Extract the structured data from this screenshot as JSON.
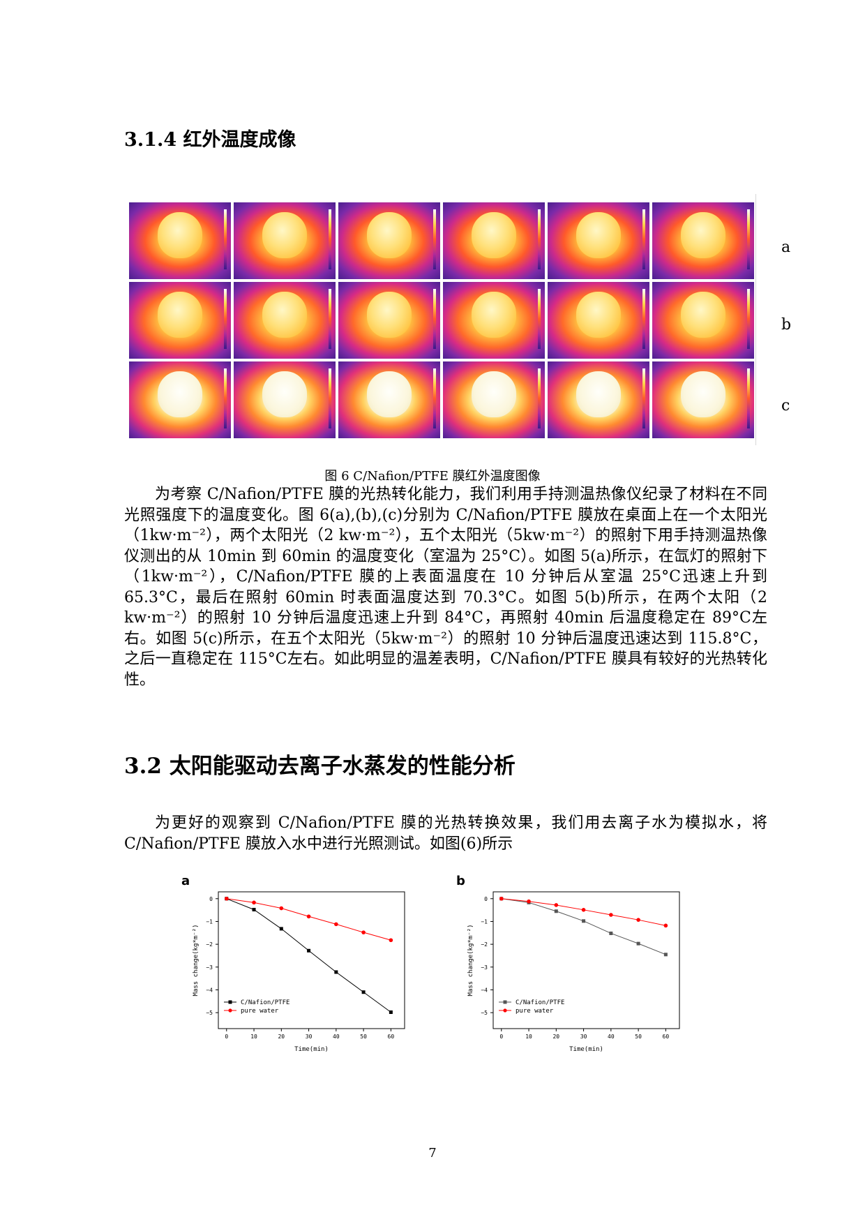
{
  "section_314": {
    "heading": "3.1.4 红外温度成像"
  },
  "figure6": {
    "row_labels": [
      "a",
      "b",
      "c"
    ],
    "caption": "图 6 C/Nafion/PTFE 膜红外温度图像"
  },
  "paragraph1": "为考察 C/Nafion/PTFE 膜的光热转化能力，我们利用手持测温热像仪纪录了材料在不同光照强度下的温度变化。图 6(a),(b),(c)分别为 C/Nafion/PTFE 膜放在桌面上在一个太阳光（1kw·m⁻²），两个太阳光（2 kw·m⁻²），五个太阳光（5kw·m⁻²）的照射下用手持测温热像仪测出的从 10min 到 60min 的温度变化（室温为 25°C）。如图 5(a)所示，在氙灯的照射下（1kw·m⁻²），C/Nafion/PTFE 膜的上表面温度在 10 分钟后从室温 25°C迅速上升到 65.3°C，最后在照射 60min 时表面温度达到 70.3°C。如图 5(b)所示，在两个太阳（2 kw·m⁻²）的照射 10 分钟后温度迅速上升到 84°C，再照射 40min 后温度稳定在 89°C左右。如图 5(c)所示，在五个太阳光（5kw·m⁻²）的照射 10 分钟后温度迅速达到 115.8°C，之后一直稳定在 115°C左右。如此明显的温差表明，C/Nafion/PTFE 膜具有较好的光热转化性。",
  "section_32": {
    "heading": "3.2 太阳能驱动去离子水蒸发的性能分析"
  },
  "paragraph2": "为更好的观察到 C/Nafion/PTFE 膜的光热转换效果，我们用去离子水为模拟水，将 C/Nafion/PTFE 膜放入水中进行光照测试。如图(6)所示",
  "chart_data": [
    {
      "type": "line",
      "panel_label": "a",
      "xlabel": "Time(min)",
      "ylabel": "Mass change(kg*m⁻²)",
      "x": [
        0,
        10,
        20,
        30,
        40,
        50,
        60
      ],
      "xticks": [
        0,
        10,
        20,
        30,
        40,
        50,
        60
      ],
      "yticks": [
        0,
        -1,
        -2,
        -3,
        -4,
        -5
      ],
      "xlim": [
        -3,
        65
      ],
      "ylim": [
        -5.7,
        0.3
      ],
      "legend_position": "bottom-left",
      "series": [
        {
          "name": "C/Nafion/PTFE",
          "color": "#000000",
          "marker": "square",
          "values": [
            0,
            -0.48,
            -1.32,
            -2.28,
            -3.22,
            -4.1,
            -4.98
          ]
        },
        {
          "name": "pure water",
          "color": "#ff0000",
          "marker": "circle",
          "values": [
            0,
            -0.17,
            -0.42,
            -0.78,
            -1.12,
            -1.48,
            -1.82
          ]
        }
      ]
    },
    {
      "type": "line",
      "panel_label": "b",
      "xlabel": "Time(min)",
      "ylabel": "Mass change(kg*m⁻²)",
      "x": [
        0,
        10,
        20,
        30,
        40,
        50,
        60
      ],
      "xticks": [
        0,
        10,
        20,
        30,
        40,
        50,
        60
      ],
      "yticks": [
        0,
        -1,
        -2,
        -3,
        -4,
        -5
      ],
      "xlim": [
        -3,
        65
      ],
      "ylim": [
        -5.7,
        0.3
      ],
      "legend_position": "bottom-left",
      "series": [
        {
          "name": "C/Nafion/PTFE",
          "color": "#555555",
          "marker": "square",
          "values": [
            0,
            -0.17,
            -0.55,
            -0.98,
            -1.52,
            -1.97,
            -2.45
          ]
        },
        {
          "name": "pure water",
          "color": "#ff0000",
          "marker": "circle",
          "values": [
            0,
            -0.12,
            -0.28,
            -0.49,
            -0.71,
            -0.93,
            -1.18
          ]
        }
      ]
    }
  ],
  "page_number": "7"
}
